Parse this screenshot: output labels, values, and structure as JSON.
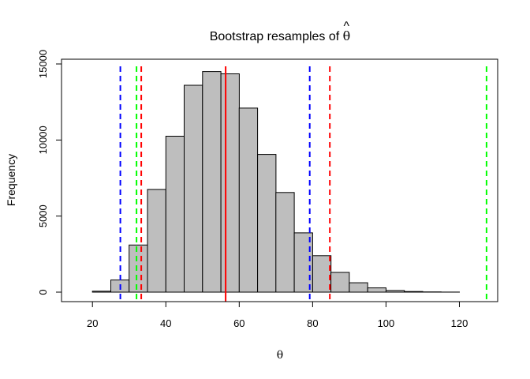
{
  "chart_data": {
    "type": "bar",
    "title": "Bootstrap resamples of θ̂",
    "title_main": "Bootstrap resamples of ",
    "title_symbol": "θ",
    "title_hat": "^",
    "xlabel": "θ",
    "ylabel": "Frequency",
    "xlim": [
      12,
      130
    ],
    "ylim": [
      0,
      15000
    ],
    "x_ticks": [
      20,
      40,
      60,
      80,
      100,
      120
    ],
    "y_ticks": [
      0,
      5000,
      10000,
      15000
    ],
    "bin_edges": [
      15,
      20,
      25,
      30,
      35,
      40,
      45,
      50,
      55,
      60,
      65,
      70,
      75,
      80,
      85,
      90,
      95,
      100,
      105,
      110,
      115,
      120,
      125
    ],
    "values": [
      0,
      60,
      800,
      3100,
      6750,
      10250,
      13600,
      14500,
      14350,
      12100,
      9050,
      6550,
      3900,
      2400,
      1300,
      620,
      280,
      110,
      40,
      15,
      5,
      2
    ],
    "bar_color": "#bebebe",
    "vertical_lines": [
      {
        "x": 56.3,
        "color": "#ff0000",
        "style": "solid"
      },
      {
        "x": 27.6,
        "color": "#0000ff",
        "style": "dashed"
      },
      {
        "x": 79.2,
        "color": "#0000ff",
        "style": "dashed"
      },
      {
        "x": 32.0,
        "color": "#00ff00",
        "style": "dashed"
      },
      {
        "x": 127.4,
        "color": "#00ff00",
        "style": "dashed"
      },
      {
        "x": 33.3,
        "color": "#ff0000",
        "style": "dashed"
      },
      {
        "x": 84.7,
        "color": "#ff0000",
        "style": "dashed"
      }
    ],
    "grid": false
  }
}
